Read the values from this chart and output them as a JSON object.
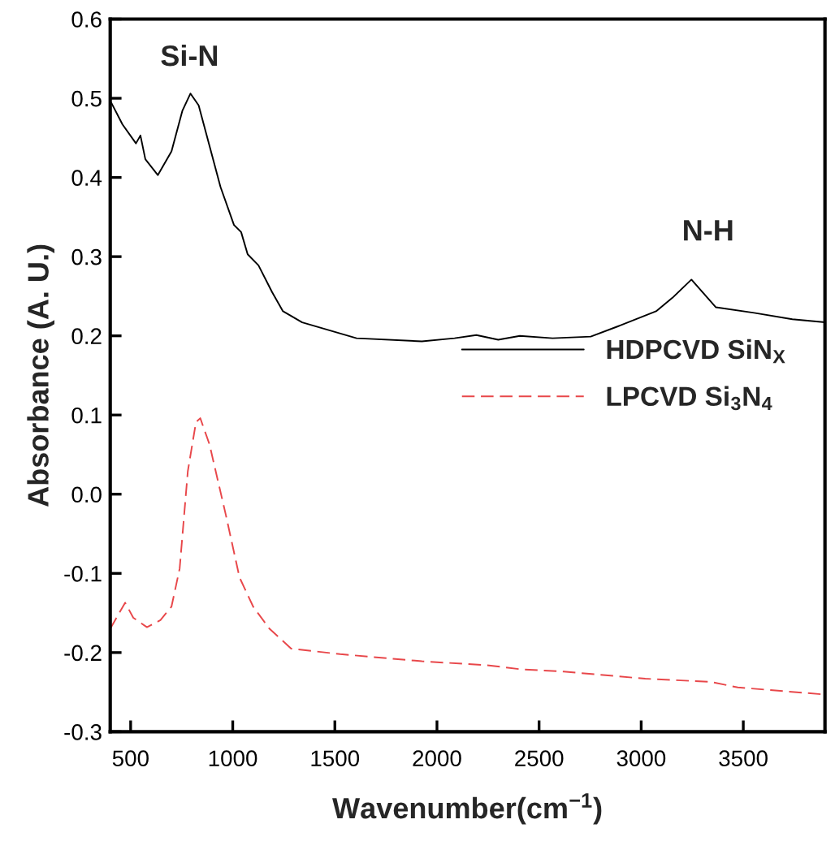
{
  "chart_data": {
    "type": "line",
    "xlabel": "Wavenumber(cm$^{−1}$)",
    "ylabel": "Absorbance (A. U.)",
    "xlim": [
      400,
      3900
    ],
    "xticks": [
      500,
      1000,
      1500,
      2000,
      2500,
      3000,
      3500
    ],
    "ylim": [
      -0.3,
      0.6
    ],
    "yticks": [
      -0.3,
      -0.2,
      -0.1,
      {
        "value": 0,
        "label": "0.0"
      },
      0.1,
      0.2,
      0.3,
      0.4,
      0.5,
      0.6
    ],
    "grid": false,
    "legend": "right",
    "annotations": [
      "Si-N",
      "N-H"
    ],
    "series": [
      {
        "name": "HDPCVD SiN$_{X}$",
        "color": "#000000",
        "line_style": "solid",
        "x": [
          406,
          460,
          526,
          548,
          572,
          633,
          700,
          753,
          793,
          833,
          886,
          940,
          1006,
          1041,
          1073,
          1126,
          1193,
          1246,
          1340,
          1473,
          1606,
          1926,
          2086,
          2193,
          2300,
          2406,
          2566,
          2753,
          2886,
          3073,
          3153,
          3246,
          3366,
          3553,
          3740,
          3900
        ],
        "values": [
          0.494,
          0.467,
          0.443,
          0.453,
          0.423,
          0.403,
          0.433,
          0.484,
          0.506,
          0.491,
          0.44,
          0.388,
          0.34,
          0.331,
          0.303,
          0.289,
          0.255,
          0.231,
          0.217,
          0.207,
          0.197,
          0.193,
          0.197,
          0.201,
          0.195,
          0.2,
          0.197,
          0.199,
          0.212,
          0.231,
          0.248,
          0.271,
          0.236,
          0.229,
          0.221,
          0.217
        ]
      },
      {
        "name": "LPCVD Si$_{3}$N$_{4}$",
        "color": "#e8474a",
        "line_style": "dashed",
        "x": [
          400,
          473,
          513,
          580,
          646,
          700,
          740,
          780,
          820,
          841,
          886,
          966,
          1033,
          1100,
          1180,
          1286,
          1526,
          1926,
          2246,
          2406,
          2620,
          3020,
          3340,
          3473,
          3900
        ],
        "values": [
          -0.17,
          -0.137,
          -0.156,
          -0.168,
          -0.159,
          -0.142,
          -0.094,
          0.029,
          0.091,
          0.096,
          0.063,
          -0.026,
          -0.105,
          -0.142,
          -0.17,
          -0.195,
          -0.202,
          -0.211,
          -0.216,
          -0.221,
          -0.224,
          -0.233,
          -0.237,
          -0.244,
          -0.253
        ]
      }
    ]
  }
}
